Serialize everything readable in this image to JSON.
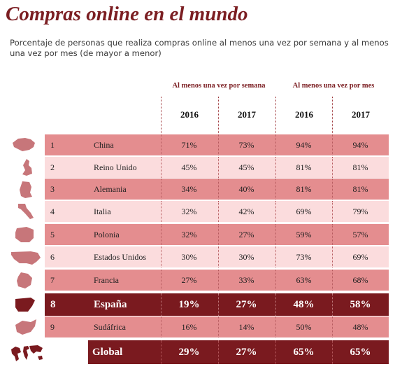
{
  "title": "Compras online en el mundo",
  "subtitle": "Porcentaje de personas que realiza compras online al menos una vez por semana y al menos una vez por mes (de mayor a menor)",
  "colors": {
    "title": "#7b1e22",
    "row_dark": "#e48d8f",
    "row_light": "#fbdcdd",
    "highlight": "#7a1a1f",
    "map": "#c7767a"
  },
  "chart_data": {
    "type": "table",
    "groups": [
      "Al menos una vez por semana",
      "Al menos una vez por mes"
    ],
    "years": [
      "2016",
      "2017",
      "2016",
      "2017"
    ],
    "rows": [
      {
        "rank": "1",
        "country": "China",
        "icon": "china-map-icon",
        "values": [
          "71%",
          "73%",
          "94%",
          "94%"
        ],
        "highlight": false
      },
      {
        "rank": "2",
        "country": "Reino Unido",
        "icon": "uk-map-icon",
        "values": [
          "45%",
          "45%",
          "81%",
          "81%"
        ],
        "highlight": false
      },
      {
        "rank": "3",
        "country": "Alemania",
        "icon": "germany-map-icon",
        "values": [
          "34%",
          "40%",
          "81%",
          "81%"
        ],
        "highlight": false
      },
      {
        "rank": "4",
        "country": "Italia",
        "icon": "italy-map-icon",
        "values": [
          "32%",
          "42%",
          "69%",
          "79%"
        ],
        "highlight": false
      },
      {
        "rank": "5",
        "country": "Polonia",
        "icon": "poland-map-icon",
        "values": [
          "32%",
          "27%",
          "59%",
          "57%"
        ],
        "highlight": false
      },
      {
        "rank": "6",
        "country": "Estados Unidos",
        "icon": "usa-map-icon",
        "values": [
          "30%",
          "30%",
          "73%",
          "69%"
        ],
        "highlight": false
      },
      {
        "rank": "7",
        "country": "Francia",
        "icon": "france-map-icon",
        "values": [
          "27%",
          "33%",
          "63%",
          "68%"
        ],
        "highlight": false
      },
      {
        "rank": "8",
        "country": "España",
        "icon": "spain-map-icon",
        "values": [
          "19%",
          "27%",
          "48%",
          "58%"
        ],
        "highlight": true
      },
      {
        "rank": "9",
        "country": "Sudáfrica",
        "icon": "south-africa-map-icon",
        "values": [
          "16%",
          "14%",
          "50%",
          "48%"
        ],
        "highlight": false
      }
    ],
    "global": {
      "label": "Global",
      "icon": "world-map-icon",
      "values": [
        "29%",
        "27%",
        "65%",
        "65%"
      ]
    }
  }
}
